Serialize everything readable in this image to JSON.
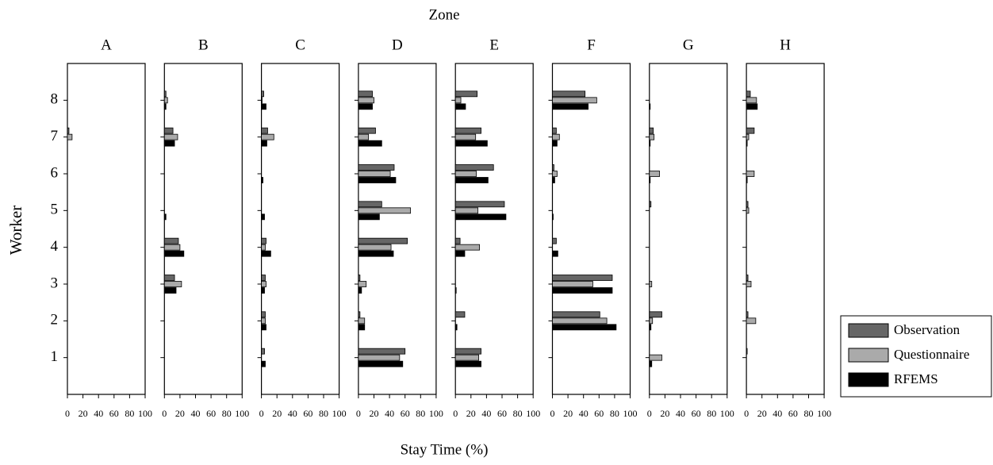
{
  "chart_data": {
    "type": "bar",
    "orientation": "horizontal",
    "title": "Zone",
    "xlabel": "Stay Time (%)",
    "ylabel": "Worker",
    "categories": [
      1,
      2,
      3,
      4,
      5,
      6,
      7,
      8
    ],
    "xlim": [
      0,
      100
    ],
    "xticks": [
      0,
      20,
      40,
      60,
      80,
      100
    ],
    "ylim": [
      0,
      9
    ],
    "yticks": [
      1,
      2,
      3,
      4,
      5,
      6,
      7,
      8
    ],
    "series": [
      {
        "name": "Observation",
        "color": "#666666"
      },
      {
        "name": "Questionnaire",
        "color": "#aaaaaa"
      },
      {
        "name": "RFEMS",
        "color": "#000000"
      }
    ],
    "panels": [
      {
        "title": "A",
        "values": [
          [
            0,
            0,
            0,
            0,
            0,
            0,
            2,
            0
          ],
          [
            0,
            0,
            0,
            0,
            0,
            0,
            6,
            0
          ],
          [
            0,
            0,
            0,
            0,
            0,
            0,
            0,
            0
          ]
        ]
      },
      {
        "title": "B",
        "values": [
          [
            0,
            0,
            13,
            18,
            0,
            0,
            11,
            2
          ],
          [
            0,
            0,
            22,
            20,
            0,
            0,
            17,
            4
          ],
          [
            0,
            0,
            15,
            25,
            2,
            0,
            13,
            2
          ]
        ]
      },
      {
        "title": "C",
        "values": [
          [
            4,
            5,
            5,
            6,
            0,
            0,
            8,
            3
          ],
          [
            0,
            5,
            6,
            5,
            0,
            0,
            16,
            1
          ],
          [
            5,
            6,
            4,
            12,
            4,
            2,
            7,
            6
          ]
        ]
      },
      {
        "title": "D",
        "values": [
          [
            60,
            2,
            2,
            63,
            30,
            46,
            22,
            18
          ],
          [
            53,
            8,
            10,
            42,
            67,
            41,
            13,
            20
          ],
          [
            57,
            8,
            4,
            45,
            27,
            48,
            30,
            18
          ]
        ]
      },
      {
        "title": "E",
        "values": [
          [
            33,
            12,
            0,
            6,
            63,
            49,
            33,
            28
          ],
          [
            30,
            0,
            0,
            31,
            29,
            27,
            26,
            7
          ],
          [
            33,
            2,
            1,
            12,
            65,
            42,
            41,
            13
          ]
        ]
      },
      {
        "title": "F",
        "values": [
          [
            0,
            61,
            77,
            5,
            0,
            2,
            5,
            42
          ],
          [
            0,
            70,
            52,
            0,
            0,
            6,
            9,
            57
          ],
          [
            0,
            82,
            77,
            7,
            1,
            3,
            6,
            46
          ]
        ]
      },
      {
        "title": "G",
        "values": [
          [
            0,
            16,
            0,
            0,
            2,
            0,
            5,
            0
          ],
          [
            16,
            4,
            3,
            0,
            0,
            13,
            6,
            0
          ],
          [
            3,
            2,
            0,
            0,
            0,
            1,
            1,
            1
          ]
        ]
      },
      {
        "title": "H",
        "values": [
          [
            1,
            2,
            2,
            0,
            2,
            0,
            10,
            5
          ],
          [
            0,
            12,
            6,
            0,
            3,
            10,
            3,
            13
          ],
          [
            0,
            0,
            0,
            0,
            0,
            1,
            1,
            14
          ]
        ]
      }
    ]
  }
}
